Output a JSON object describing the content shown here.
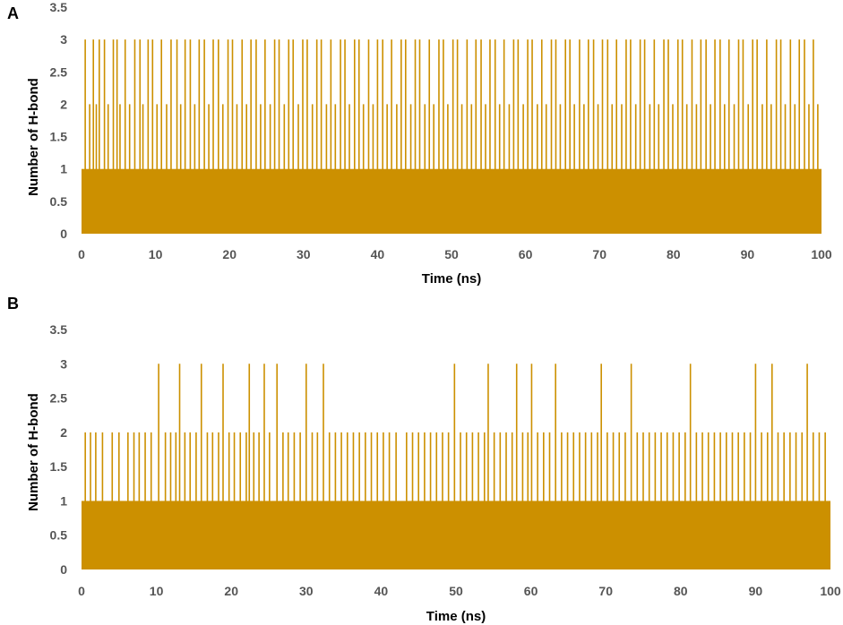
{
  "colors": {
    "series": "#CC9000",
    "tick_text": "#555555",
    "text": "#000000"
  },
  "chart_data": [
    {
      "type": "bar",
      "panel_label": "A",
      "xlabel": "Time (ns)",
      "ylabel": "Number of H-bond",
      "xlim": [
        0,
        100
      ],
      "ylim": [
        0,
        3.5
      ],
      "x_ticks": [
        "0",
        "10",
        "20",
        "30",
        "40",
        "50",
        "60",
        "70",
        "80",
        "90",
        "100"
      ],
      "y_ticks": [
        "0",
        "0.5",
        "1",
        "1.5",
        "2",
        "2.5",
        "3",
        "3.5"
      ],
      "grid": false,
      "baseline_level": 1,
      "events": [
        {
          "x": 0.5,
          "y": 3
        },
        {
          "x": 1.1,
          "y": 2
        },
        {
          "x": 1.6,
          "y": 3
        },
        {
          "x": 2.0,
          "y": 2
        },
        {
          "x": 2.4,
          "y": 3
        },
        {
          "x": 3.1,
          "y": 3
        },
        {
          "x": 3.6,
          "y": 2
        },
        {
          "x": 4.3,
          "y": 3
        },
        {
          "x": 4.8,
          "y": 3
        },
        {
          "x": 5.2,
          "y": 2
        },
        {
          "x": 5.9,
          "y": 3
        },
        {
          "x": 6.5,
          "y": 2
        },
        {
          "x": 7.2,
          "y": 3
        },
        {
          "x": 7.9,
          "y": 3
        },
        {
          "x": 8.3,
          "y": 2
        },
        {
          "x": 9.0,
          "y": 3
        },
        {
          "x": 9.6,
          "y": 3
        },
        {
          "x": 10.2,
          "y": 2
        },
        {
          "x": 10.8,
          "y": 3
        },
        {
          "x": 11.5,
          "y": 2
        },
        {
          "x": 12.1,
          "y": 3
        },
        {
          "x": 12.9,
          "y": 3
        },
        {
          "x": 13.4,
          "y": 2
        },
        {
          "x": 14.0,
          "y": 3
        },
        {
          "x": 14.7,
          "y": 3
        },
        {
          "x": 15.3,
          "y": 2
        },
        {
          "x": 15.9,
          "y": 3
        },
        {
          "x": 16.6,
          "y": 3
        },
        {
          "x": 17.2,
          "y": 2
        },
        {
          "x": 17.8,
          "y": 3
        },
        {
          "x": 18.5,
          "y": 3
        },
        {
          "x": 19.1,
          "y": 2
        },
        {
          "x": 19.8,
          "y": 3
        },
        {
          "x": 20.4,
          "y": 3
        },
        {
          "x": 21.0,
          "y": 2
        },
        {
          "x": 21.7,
          "y": 3
        },
        {
          "x": 22.3,
          "y": 2
        },
        {
          "x": 22.9,
          "y": 3
        },
        {
          "x": 23.6,
          "y": 3
        },
        {
          "x": 24.2,
          "y": 2
        },
        {
          "x": 24.8,
          "y": 3
        },
        {
          "x": 25.5,
          "y": 2
        },
        {
          "x": 26.1,
          "y": 3
        },
        {
          "x": 26.7,
          "y": 3
        },
        {
          "x": 27.4,
          "y": 2
        },
        {
          "x": 28.0,
          "y": 3
        },
        {
          "x": 28.6,
          "y": 3
        },
        {
          "x": 29.3,
          "y": 2
        },
        {
          "x": 29.9,
          "y": 3
        },
        {
          "x": 30.5,
          "y": 3
        },
        {
          "x": 31.2,
          "y": 2
        },
        {
          "x": 31.8,
          "y": 3
        },
        {
          "x": 32.4,
          "y": 3
        },
        {
          "x": 33.1,
          "y": 2
        },
        {
          "x": 33.7,
          "y": 3
        },
        {
          "x": 34.3,
          "y": 2
        },
        {
          "x": 35.0,
          "y": 3
        },
        {
          "x": 35.6,
          "y": 3
        },
        {
          "x": 36.2,
          "y": 2
        },
        {
          "x": 36.9,
          "y": 3
        },
        {
          "x": 37.5,
          "y": 3
        },
        {
          "x": 38.1,
          "y": 2
        },
        {
          "x": 38.8,
          "y": 3
        },
        {
          "x": 39.4,
          "y": 2
        },
        {
          "x": 40.0,
          "y": 3
        },
        {
          "x": 40.7,
          "y": 3
        },
        {
          "x": 41.3,
          "y": 2
        },
        {
          "x": 41.9,
          "y": 3
        },
        {
          "x": 42.6,
          "y": 2
        },
        {
          "x": 43.2,
          "y": 3
        },
        {
          "x": 43.8,
          "y": 3
        },
        {
          "x": 44.5,
          "y": 2
        },
        {
          "x": 45.1,
          "y": 3
        },
        {
          "x": 45.7,
          "y": 3
        },
        {
          "x": 46.4,
          "y": 2
        },
        {
          "x": 47.0,
          "y": 3
        },
        {
          "x": 47.6,
          "y": 2
        },
        {
          "x": 48.3,
          "y": 3
        },
        {
          "x": 48.9,
          "y": 3
        },
        {
          "x": 49.5,
          "y": 2
        },
        {
          "x": 50.2,
          "y": 3
        },
        {
          "x": 50.8,
          "y": 3
        },
        {
          "x": 51.4,
          "y": 2
        },
        {
          "x": 52.1,
          "y": 3
        },
        {
          "x": 52.7,
          "y": 2
        },
        {
          "x": 53.3,
          "y": 3
        },
        {
          "x": 54.0,
          "y": 3
        },
        {
          "x": 54.6,
          "y": 2
        },
        {
          "x": 55.2,
          "y": 3
        },
        {
          "x": 55.9,
          "y": 3
        },
        {
          "x": 56.5,
          "y": 2
        },
        {
          "x": 57.1,
          "y": 3
        },
        {
          "x": 57.8,
          "y": 2
        },
        {
          "x": 58.4,
          "y": 3
        },
        {
          "x": 59.0,
          "y": 3
        },
        {
          "x": 59.7,
          "y": 2
        },
        {
          "x": 60.3,
          "y": 3
        },
        {
          "x": 60.9,
          "y": 3
        },
        {
          "x": 61.6,
          "y": 2
        },
        {
          "x": 62.2,
          "y": 3
        },
        {
          "x": 62.8,
          "y": 2
        },
        {
          "x": 63.5,
          "y": 3
        },
        {
          "x": 64.1,
          "y": 3
        },
        {
          "x": 64.7,
          "y": 2
        },
        {
          "x": 65.4,
          "y": 3
        },
        {
          "x": 66.0,
          "y": 3
        },
        {
          "x": 66.6,
          "y": 2
        },
        {
          "x": 67.3,
          "y": 3
        },
        {
          "x": 67.9,
          "y": 2
        },
        {
          "x": 68.5,
          "y": 3
        },
        {
          "x": 69.2,
          "y": 3
        },
        {
          "x": 69.8,
          "y": 2
        },
        {
          "x": 70.4,
          "y": 3
        },
        {
          "x": 71.1,
          "y": 3
        },
        {
          "x": 71.7,
          "y": 2
        },
        {
          "x": 72.3,
          "y": 3
        },
        {
          "x": 73.0,
          "y": 2
        },
        {
          "x": 73.6,
          "y": 3
        },
        {
          "x": 74.2,
          "y": 3
        },
        {
          "x": 74.9,
          "y": 2
        },
        {
          "x": 75.5,
          "y": 3
        },
        {
          "x": 76.1,
          "y": 3
        },
        {
          "x": 76.8,
          "y": 2
        },
        {
          "x": 77.4,
          "y": 3
        },
        {
          "x": 78.0,
          "y": 2
        },
        {
          "x": 78.7,
          "y": 3
        },
        {
          "x": 79.3,
          "y": 3
        },
        {
          "x": 79.9,
          "y": 2
        },
        {
          "x": 80.6,
          "y": 3
        },
        {
          "x": 81.2,
          "y": 3
        },
        {
          "x": 81.8,
          "y": 2
        },
        {
          "x": 82.5,
          "y": 3
        },
        {
          "x": 83.1,
          "y": 2
        },
        {
          "x": 83.7,
          "y": 3
        },
        {
          "x": 84.4,
          "y": 3
        },
        {
          "x": 85.0,
          "y": 2
        },
        {
          "x": 85.6,
          "y": 3
        },
        {
          "x": 86.3,
          "y": 3
        },
        {
          "x": 86.9,
          "y": 2
        },
        {
          "x": 87.5,
          "y": 3
        },
        {
          "x": 88.2,
          "y": 2
        },
        {
          "x": 88.8,
          "y": 3
        },
        {
          "x": 89.4,
          "y": 3
        },
        {
          "x": 90.1,
          "y": 2
        },
        {
          "x": 90.7,
          "y": 3
        },
        {
          "x": 91.3,
          "y": 3
        },
        {
          "x": 92.0,
          "y": 2
        },
        {
          "x": 92.6,
          "y": 3
        },
        {
          "x": 93.2,
          "y": 2
        },
        {
          "x": 93.9,
          "y": 3
        },
        {
          "x": 94.5,
          "y": 3
        },
        {
          "x": 95.1,
          "y": 2
        },
        {
          "x": 95.8,
          "y": 3
        },
        {
          "x": 96.4,
          "y": 2
        },
        {
          "x": 97.0,
          "y": 3
        },
        {
          "x": 97.7,
          "y": 3
        },
        {
          "x": 98.3,
          "y": 2
        },
        {
          "x": 98.9,
          "y": 3
        },
        {
          "x": 99.5,
          "y": 2
        }
      ]
    },
    {
      "type": "bar",
      "panel_label": "B",
      "xlabel": "Time (ns)",
      "ylabel": "Number of H-bond",
      "xlim": [
        0,
        100
      ],
      "ylim": [
        0,
        3.5
      ],
      "x_ticks": [
        "0",
        "10",
        "20",
        "30",
        "40",
        "50",
        "60",
        "70",
        "80",
        "90",
        "100"
      ],
      "y_ticks": [
        "0",
        "0.5",
        "1",
        "1.5",
        "2",
        "2.5",
        "3",
        "3.5"
      ],
      "grid": false,
      "baseline_level": 1,
      "events": [
        {
          "x": 0.5,
          "y": 2
        },
        {
          "x": 1.2,
          "y": 2
        },
        {
          "x": 1.9,
          "y": 2
        },
        {
          "x": 2.8,
          "y": 2
        },
        {
          "x": 4.1,
          "y": 2
        },
        {
          "x": 5.0,
          "y": 2
        },
        {
          "x": 6.2,
          "y": 2
        },
        {
          "x": 7.0,
          "y": 2
        },
        {
          "x": 7.7,
          "y": 2
        },
        {
          "x": 8.5,
          "y": 2
        },
        {
          "x": 9.3,
          "y": 2
        },
        {
          "x": 10.3,
          "y": 3
        },
        {
          "x": 11.2,
          "y": 2
        },
        {
          "x": 11.9,
          "y": 2
        },
        {
          "x": 12.6,
          "y": 2
        },
        {
          "x": 13.1,
          "y": 3
        },
        {
          "x": 13.8,
          "y": 2
        },
        {
          "x": 14.5,
          "y": 2
        },
        {
          "x": 15.3,
          "y": 2
        },
        {
          "x": 16.0,
          "y": 3
        },
        {
          "x": 16.8,
          "y": 2
        },
        {
          "x": 17.5,
          "y": 2
        },
        {
          "x": 18.3,
          "y": 2
        },
        {
          "x": 18.9,
          "y": 3
        },
        {
          "x": 19.7,
          "y": 2
        },
        {
          "x": 20.4,
          "y": 2
        },
        {
          "x": 21.2,
          "y": 2
        },
        {
          "x": 22.0,
          "y": 2
        },
        {
          "x": 22.4,
          "y": 3
        },
        {
          "x": 23.0,
          "y": 2
        },
        {
          "x": 23.7,
          "y": 2
        },
        {
          "x": 24.4,
          "y": 3
        },
        {
          "x": 25.1,
          "y": 2
        },
        {
          "x": 26.1,
          "y": 3
        },
        {
          "x": 26.9,
          "y": 2
        },
        {
          "x": 27.6,
          "y": 2
        },
        {
          "x": 28.4,
          "y": 2
        },
        {
          "x": 29.2,
          "y": 2
        },
        {
          "x": 30.0,
          "y": 3
        },
        {
          "x": 30.8,
          "y": 2
        },
        {
          "x": 31.5,
          "y": 2
        },
        {
          "x": 32.3,
          "y": 3
        },
        {
          "x": 33.1,
          "y": 2
        },
        {
          "x": 33.9,
          "y": 2
        },
        {
          "x": 34.7,
          "y": 2
        },
        {
          "x": 35.5,
          "y": 2
        },
        {
          "x": 36.3,
          "y": 2
        },
        {
          "x": 37.1,
          "y": 2
        },
        {
          "x": 37.9,
          "y": 2
        },
        {
          "x": 38.7,
          "y": 2
        },
        {
          "x": 39.5,
          "y": 2
        },
        {
          "x": 40.3,
          "y": 2
        },
        {
          "x": 41.1,
          "y": 2
        },
        {
          "x": 42.0,
          "y": 2
        },
        {
          "x": 43.4,
          "y": 2
        },
        {
          "x": 44.2,
          "y": 2
        },
        {
          "x": 45.0,
          "y": 2
        },
        {
          "x": 45.8,
          "y": 2
        },
        {
          "x": 46.6,
          "y": 2
        },
        {
          "x": 47.4,
          "y": 2
        },
        {
          "x": 48.2,
          "y": 2
        },
        {
          "x": 49.0,
          "y": 2
        },
        {
          "x": 49.8,
          "y": 3
        },
        {
          "x": 50.6,
          "y": 2
        },
        {
          "x": 51.4,
          "y": 2
        },
        {
          "x": 52.2,
          "y": 2
        },
        {
          "x": 53.0,
          "y": 2
        },
        {
          "x": 53.8,
          "y": 2
        },
        {
          "x": 54.3,
          "y": 3
        },
        {
          "x": 55.1,
          "y": 2
        },
        {
          "x": 55.9,
          "y": 2
        },
        {
          "x": 56.7,
          "y": 2
        },
        {
          "x": 57.5,
          "y": 2
        },
        {
          "x": 58.1,
          "y": 3
        },
        {
          "x": 58.9,
          "y": 2
        },
        {
          "x": 59.6,
          "y": 2
        },
        {
          "x": 60.1,
          "y": 3
        },
        {
          "x": 60.9,
          "y": 2
        },
        {
          "x": 61.7,
          "y": 2
        },
        {
          "x": 62.5,
          "y": 2
        },
        {
          "x": 63.3,
          "y": 3
        },
        {
          "x": 64.1,
          "y": 2
        },
        {
          "x": 64.9,
          "y": 2
        },
        {
          "x": 65.7,
          "y": 2
        },
        {
          "x": 66.5,
          "y": 2
        },
        {
          "x": 67.3,
          "y": 2
        },
        {
          "x": 68.1,
          "y": 2
        },
        {
          "x": 68.9,
          "y": 2
        },
        {
          "x": 69.4,
          "y": 3
        },
        {
          "x": 70.2,
          "y": 2
        },
        {
          "x": 71.0,
          "y": 2
        },
        {
          "x": 71.8,
          "y": 2
        },
        {
          "x": 72.6,
          "y": 2
        },
        {
          "x": 73.4,
          "y": 3
        },
        {
          "x": 74.2,
          "y": 2
        },
        {
          "x": 75.0,
          "y": 2
        },
        {
          "x": 75.8,
          "y": 2
        },
        {
          "x": 76.6,
          "y": 2
        },
        {
          "x": 77.4,
          "y": 2
        },
        {
          "x": 78.2,
          "y": 2
        },
        {
          "x": 79.0,
          "y": 2
        },
        {
          "x": 79.8,
          "y": 2
        },
        {
          "x": 80.6,
          "y": 2
        },
        {
          "x": 81.3,
          "y": 3
        },
        {
          "x": 82.1,
          "y": 2
        },
        {
          "x": 82.9,
          "y": 2
        },
        {
          "x": 83.7,
          "y": 2
        },
        {
          "x": 84.5,
          "y": 2
        },
        {
          "x": 85.3,
          "y": 2
        },
        {
          "x": 86.1,
          "y": 2
        },
        {
          "x": 86.9,
          "y": 2
        },
        {
          "x": 87.7,
          "y": 2
        },
        {
          "x": 88.5,
          "y": 2
        },
        {
          "x": 89.3,
          "y": 2
        },
        {
          "x": 90.0,
          "y": 3
        },
        {
          "x": 90.8,
          "y": 2
        },
        {
          "x": 91.6,
          "y": 2
        },
        {
          "x": 92.2,
          "y": 3
        },
        {
          "x": 93.0,
          "y": 2
        },
        {
          "x": 93.8,
          "y": 2
        },
        {
          "x": 94.6,
          "y": 2
        },
        {
          "x": 95.4,
          "y": 2
        },
        {
          "x": 96.2,
          "y": 2
        },
        {
          "x": 96.9,
          "y": 3
        },
        {
          "x": 97.7,
          "y": 2
        },
        {
          "x": 98.5,
          "y": 2
        },
        {
          "x": 99.3,
          "y": 2
        }
      ]
    }
  ]
}
